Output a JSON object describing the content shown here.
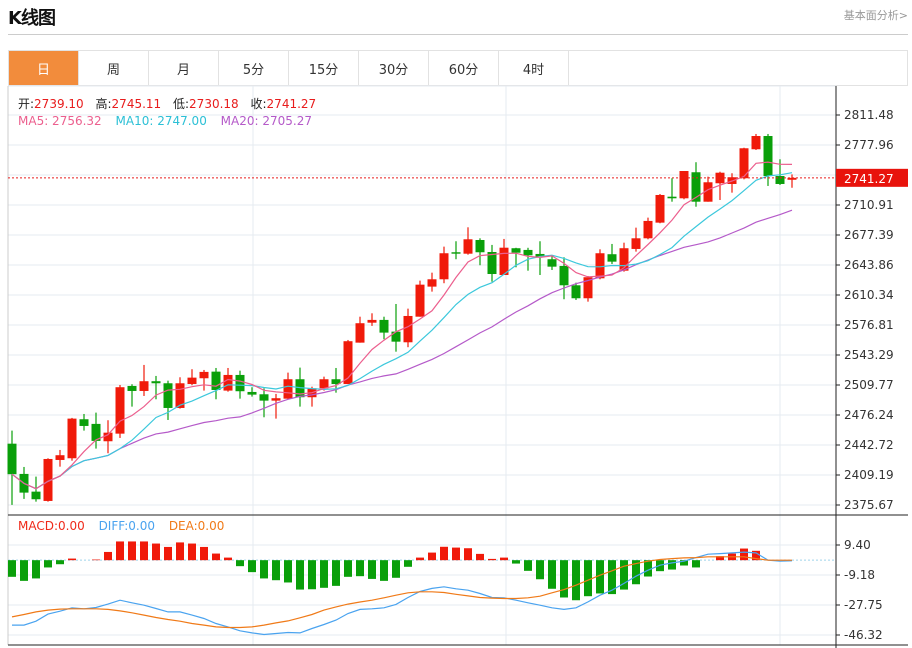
{
  "header": {
    "title": "K线图",
    "link": "基本面分析>"
  },
  "tabs": [
    {
      "label": "日",
      "active": true
    },
    {
      "label": "周"
    },
    {
      "label": "月"
    },
    {
      "label": "5分"
    },
    {
      "label": "15分"
    },
    {
      "label": "30分"
    },
    {
      "label": "60分"
    },
    {
      "label": "4时"
    }
  ],
  "info": {
    "open_label": "开:",
    "open": "2739.10",
    "high_label": "高:",
    "high": "2745.11",
    "low_label": "低:",
    "low": "2730.18",
    "close_label": "收:",
    "close": "2741.27"
  },
  "ma": {
    "ma5": "MA5: 2756.32",
    "ma10": "MA10: 2747.00",
    "ma20": "MA20: 2705.27"
  },
  "macd_info": {
    "macd": "MACD:0.00",
    "diff": "DIFF:0.00",
    "dea": "DEA:0.00"
  },
  "colors": {
    "up": "#f01a0a",
    "down": "#0a9f0a",
    "ma5": "#ec5f8e",
    "ma10": "#3cc8dc",
    "ma20": "#b55ac9",
    "diff": "#4aa3ef",
    "dea": "#f07a18",
    "accent": "#f28c3c"
  },
  "chart_data": [
    {
      "type": "candlestick",
      "title": "K线图",
      "current_price": "2741.27",
      "y_ticks": [
        "2811.48",
        "2777.96",
        "2710.91",
        "2677.39",
        "2643.86",
        "2610.34",
        "2576.81",
        "2543.29",
        "2509.77",
        "2476.24",
        "2442.72",
        "2409.19",
        "2375.67"
      ],
      "ylim": [
        2375.67,
        2811.48
      ],
      "ohlc": [
        [
          2444.2,
          2458.8,
          2375.8,
          2410.1
        ],
        [
          2410.4,
          2418.2,
          2382.5,
          2389.5
        ],
        [
          2390.6,
          2407.4,
          2379.4,
          2382.1
        ],
        [
          2380.2,
          2427.9,
          2379.4,
          2427.1
        ],
        [
          2426.0,
          2437.2,
          2418.5,
          2431.3
        ],
        [
          2427.9,
          2473.0,
          2425.2,
          2472.2
        ],
        [
          2471.5,
          2477.4,
          2458.8,
          2464.0
        ],
        [
          2466.3,
          2478.9,
          2438.7,
          2447.3
        ],
        [
          2446.9,
          2470.4,
          2433.5,
          2456.5
        ],
        [
          2455.4,
          2509.8,
          2450.6,
          2507.3
        ],
        [
          2508.7,
          2510.6,
          2485.6,
          2503.1
        ],
        [
          2503.1,
          2532.2,
          2497.5,
          2514.0
        ],
        [
          2514.0,
          2519.9,
          2493.8,
          2511.7
        ],
        [
          2511.7,
          2514.6,
          2470.7,
          2484.1
        ],
        [
          2484.1,
          2518.4,
          2483.4,
          2511.7
        ],
        [
          2510.9,
          2527.4,
          2509.5,
          2518.0
        ],
        [
          2517.3,
          2526.6,
          2503.5,
          2524.4
        ],
        [
          2524.7,
          2528.8,
          2493.8,
          2504.2
        ],
        [
          2503.5,
          2528.8,
          2502.3,
          2521.0
        ],
        [
          2521.0,
          2525.8,
          2494.5,
          2502.8
        ],
        [
          2502.0,
          2507.3,
          2496.8,
          2499.0
        ],
        [
          2499.4,
          2506.1,
          2473.7,
          2492.3
        ],
        [
          2492.3,
          2499.8,
          2472.2,
          2495.0
        ],
        [
          2494.5,
          2523.6,
          2493.8,
          2516.2
        ],
        [
          2516.2,
          2529.2,
          2485.6,
          2496.1
        ],
        [
          2496.1,
          2507.9,
          2485.6,
          2506.1
        ],
        [
          2506.1,
          2519.1,
          2503.5,
          2516.2
        ],
        [
          2516.2,
          2528.8,
          2501.2,
          2510.9
        ],
        [
          2510.9,
          2560.1,
          2510.9,
          2558.7
        ],
        [
          2557.1,
          2586.1,
          2557.1,
          2578.8
        ],
        [
          2579.4,
          2589.9,
          2575.8,
          2582.5
        ],
        [
          2582.5,
          2586.1,
          2560.9,
          2568.3
        ],
        [
          2569.4,
          2600.3,
          2547.0,
          2558.2
        ],
        [
          2557.5,
          2595.1,
          2552.0,
          2586.9
        ],
        [
          2586.1,
          2626.4,
          2586.1,
          2621.9
        ],
        [
          2619.7,
          2635.3,
          2614.1,
          2627.9
        ],
        [
          2627.9,
          2664.4,
          2623.5,
          2657.0
        ],
        [
          2658.1,
          2670.4,
          2650.3,
          2656.5
        ],
        [
          2656.5,
          2686.0,
          2655.4,
          2672.6
        ],
        [
          2671.8,
          2673.7,
          2643.6,
          2658.1
        ],
        [
          2658.4,
          2666.3,
          2625.2,
          2633.8
        ],
        [
          2632.7,
          2673.0,
          2632.7,
          2663.2
        ],
        [
          2662.6,
          2663.1,
          2641.3,
          2657.6
        ],
        [
          2660.7,
          2663.1,
          2637.5,
          2654.7
        ],
        [
          2656.2,
          2670.4,
          2632.7,
          2652.5
        ],
        [
          2650.3,
          2654.0,
          2638.3,
          2642.0
        ],
        [
          2642.8,
          2652.5,
          2605.6,
          2621.2
        ],
        [
          2621.2,
          2624.1,
          2604.8,
          2606.7
        ],
        [
          2606.7,
          2631.6,
          2602.9,
          2630.2
        ],
        [
          2629.0,
          2661.4,
          2627.9,
          2657.0
        ],
        [
          2655.9,
          2667.4,
          2645.0,
          2647.6
        ],
        [
          2637.5,
          2668.8,
          2636.4,
          2662.6
        ],
        [
          2661.8,
          2685.6,
          2658.8,
          2673.7
        ],
        [
          2673.7,
          2696.8,
          2672.6,
          2693.1
        ],
        [
          2691.2,
          2723.2,
          2690.5,
          2722.1
        ],
        [
          2720.2,
          2740.8,
          2714.6,
          2718.4
        ],
        [
          2718.4,
          2748.9,
          2717.3,
          2748.9
        ],
        [
          2747.5,
          2758.7,
          2709.0,
          2714.6
        ],
        [
          2714.6,
          2742.6,
          2714.6,
          2736.3
        ],
        [
          2735.2,
          2748.1,
          2716.5,
          2747.0
        ],
        [
          2734.4,
          2746.4,
          2724.7,
          2741.9
        ],
        [
          2740.8,
          2774.9,
          2739.6,
          2774.3
        ],
        [
          2773.2,
          2790.3,
          2772.4,
          2788.0
        ],
        [
          2788.0,
          2790.3,
          2732.2,
          2743.3
        ],
        [
          2743.3,
          2762.0,
          2733.3,
          2734.4
        ],
        [
          2739.1,
          2745.11,
          2730.18,
          2741.27
        ]
      ],
      "ma_periods": [
        5,
        10,
        20
      ]
    },
    {
      "type": "macd",
      "y_ticks": [
        "9.40",
        "-9.18",
        "-27.75",
        "-46.32"
      ],
      "ylim": [
        -46.32,
        9.4
      ],
      "macd": [
        -10.3,
        -12.8,
        -11.3,
        -4.5,
        -2.5,
        1.0,
        0,
        0.4,
        5.1,
        11.6,
        11.6,
        11.6,
        10.3,
        8.2,
        11.0,
        10.3,
        8.2,
        4.1,
        1.6,
        -3.7,
        -7.4,
        -11.3,
        -12.4,
        -13.8,
        -18.2,
        -18.0,
        -17.1,
        -15.9,
        -10.3,
        -9.9,
        -11.6,
        -12.8,
        -10.9,
        -4.1,
        1.6,
        4.7,
        8.3,
        7.8,
        7.4,
        3.9,
        0.8,
        1.6,
        -2.1,
        -6.6,
        -11.8,
        -17.7,
        -23.1,
        -24.8,
        -22.3,
        -20.6,
        -21.0,
        -18.2,
        -14.9,
        -10.1,
        -6.8,
        -5.8,
        -3.3,
        -4.5,
        -0.3,
        2.5,
        4.1,
        7.2,
        5.8,
        0,
        0,
        0
      ],
      "diff": [
        -40.2,
        -40.2,
        -37.8,
        -33.4,
        -31.6,
        -29.5,
        -30.1,
        -29.3,
        -27.2,
        -24.8,
        -26.4,
        -27.9,
        -29.9,
        -32.0,
        -32.0,
        -34.0,
        -36.1,
        -39.2,
        -41.3,
        -43.7,
        -45.0,
        -46.0,
        -45.4,
        -44.8,
        -45.0,
        -42.3,
        -39.8,
        -37.1,
        -33.0,
        -30.5,
        -30.1,
        -29.5,
        -27.4,
        -23.1,
        -19.4,
        -17.5,
        -16.5,
        -17.7,
        -18.6,
        -20.6,
        -23.1,
        -23.3,
        -24.8,
        -26.4,
        -27.9,
        -29.5,
        -30.5,
        -29.5,
        -25.8,
        -21.7,
        -18.6,
        -14.4,
        -9.9,
        -6.2,
        -3.1,
        -1.7,
        -0.6,
        1.6,
        3.7,
        4.1,
        4.5,
        5.0,
        4.5,
        0,
        -0.6,
        -0.4
      ],
      "dea": [
        -35.1,
        -33.6,
        -32.0,
        -30.9,
        -30.3,
        -30.1,
        -30.1,
        -30.1,
        -30.5,
        -31.4,
        -32.6,
        -34.0,
        -35.5,
        -36.7,
        -37.8,
        -39.2,
        -40.2,
        -41.3,
        -41.7,
        -41.7,
        -41.3,
        -40.2,
        -38.8,
        -37.6,
        -35.7,
        -33.6,
        -30.9,
        -28.9,
        -27.2,
        -25.9,
        -24.8,
        -23.3,
        -21.7,
        -20.2,
        -19.6,
        -19.6,
        -20.0,
        -21.1,
        -22.1,
        -23.1,
        -23.5,
        -23.7,
        -23.7,
        -23.3,
        -22.3,
        -20.2,
        -18.2,
        -15.5,
        -12.4,
        -9.3,
        -6.6,
        -3.7,
        -2.1,
        -0.6,
        0.4,
        1.0,
        1.4,
        1.6,
        2.1,
        2.1,
        2.1,
        2.1,
        1.0,
        0,
        0,
        0
      ]
    }
  ]
}
